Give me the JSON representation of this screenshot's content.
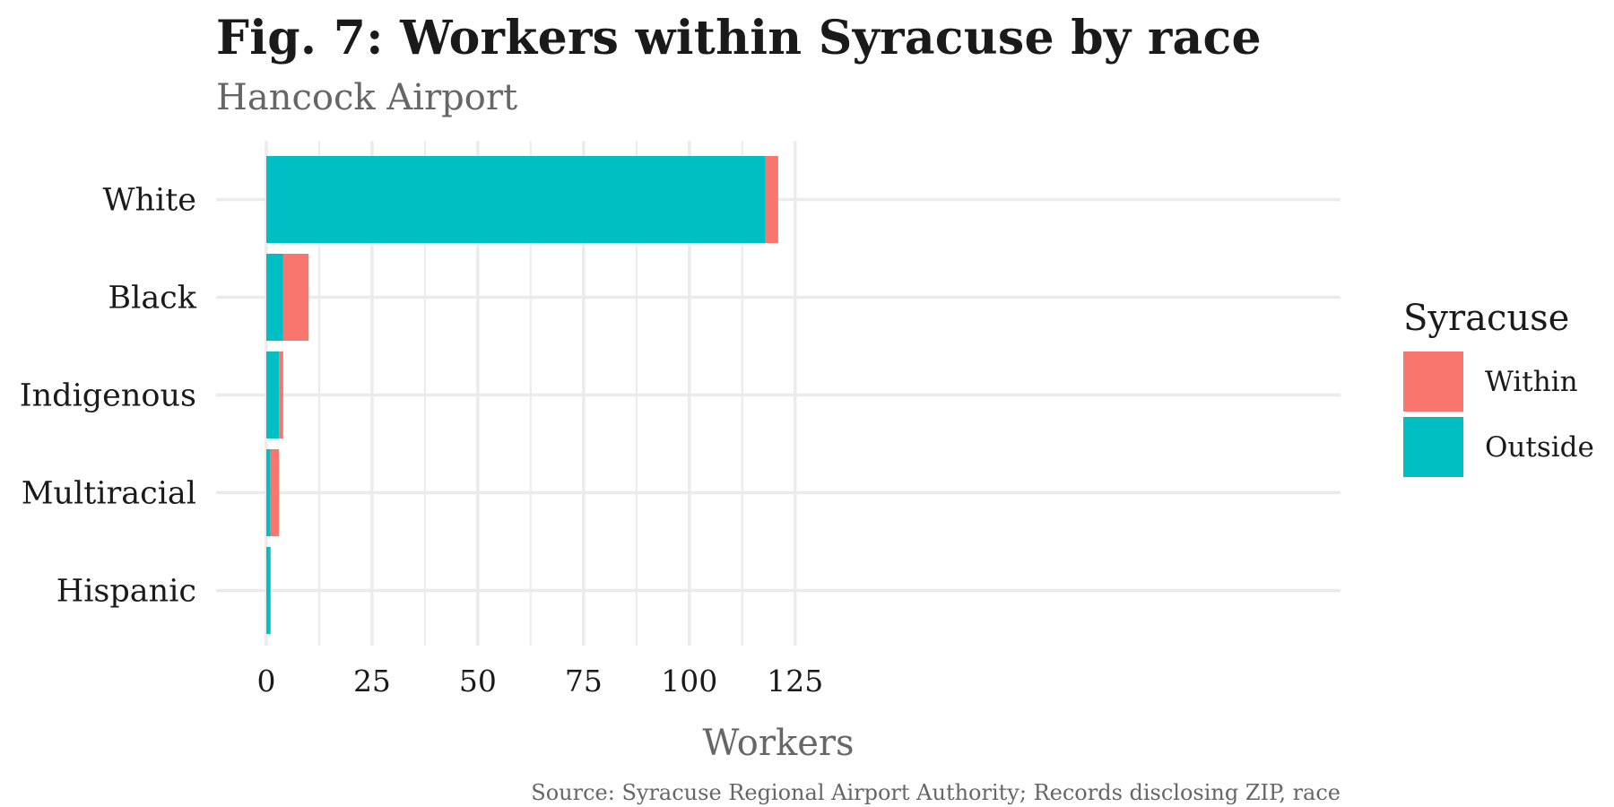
{
  "title": "Fig. 7: Workers within Syracuse by race",
  "subtitle": "Hancock Airport",
  "caption": "Source: Syracuse Regional Airport Authority; Records disclosing ZIP, race",
  "legend": {
    "title": "Syracuse",
    "items": [
      {
        "label": "Within",
        "color": "#F8766D"
      },
      {
        "label": "Outside",
        "color": "#00BFC4"
      }
    ]
  },
  "chart_data": {
    "type": "bar",
    "orientation": "horizontal",
    "stacked": true,
    "categories": [
      "White",
      "Black",
      "Indigenous",
      "Multiracial",
      "Hispanic"
    ],
    "series": [
      {
        "name": "Outside",
        "color": "#00BFC4",
        "values": [
          118,
          4,
          3,
          1,
          1
        ]
      },
      {
        "name": "Within",
        "color": "#F8766D",
        "values": [
          3,
          6,
          1,
          2,
          0
        ]
      }
    ],
    "xlabel": "Workers",
    "ylabel": "",
    "xlim": [
      0,
      127
    ],
    "xticks": [
      0,
      25,
      50,
      75,
      100,
      125
    ],
    "grid": true,
    "legend_position": "right"
  }
}
